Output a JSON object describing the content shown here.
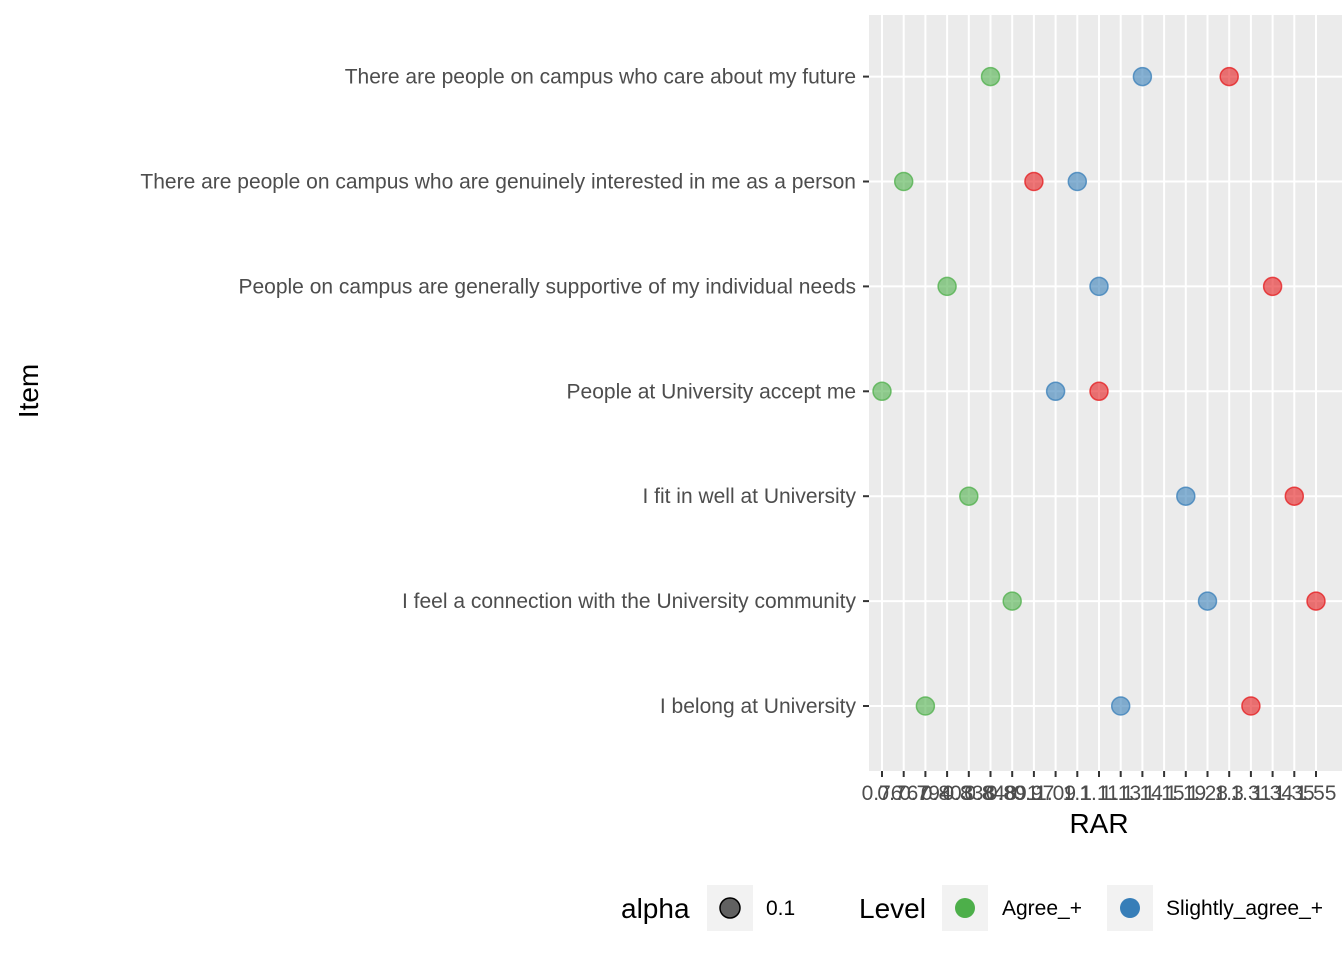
{
  "chart_data": {
    "type": "scatter",
    "title": "",
    "xlabel": "RAR",
    "ylabel": "Item",
    "grid": true,
    "legend_position": "bottom",
    "categories": [
      "I belong at University",
      "I feel a connection with the University community",
      "I fit in well at University",
      "People at University accept me",
      "People on campus are generally supportive of my individual needs",
      "There are people on campus who are genuinely interested in me as a person",
      "There are people on campus who care about my future"
    ],
    "x_ticks": [
      "0.76",
      "0.767",
      "0.794",
      "0.803",
      "0.838",
      "0.848",
      "0.891",
      "0.97",
      "1.09",
      "1.1",
      "1.11",
      "1.13",
      "1.14",
      "1.15",
      "1.19",
      "1.28",
      "1.3",
      "1.31",
      "1.34",
      "1.35",
      "1.55"
    ],
    "series": [
      {
        "name": "Agree_+",
        "color": "#4daf4a",
        "points": [
          {
            "item": "I belong at University",
            "x": "0.794"
          },
          {
            "item": "I feel a connection with the University community",
            "x": "0.891"
          },
          {
            "item": "I fit in well at University",
            "x": "0.838"
          },
          {
            "item": "People at University accept me",
            "x": "0.76"
          },
          {
            "item": "People on campus are generally supportive of my individual needs",
            "x": "0.803"
          },
          {
            "item": "There are people on campus who are genuinely interested in me as a person",
            "x": "0.767"
          },
          {
            "item": "There are people on campus who care about my future",
            "x": "0.848"
          }
        ]
      },
      {
        "name": "Slightly_agree_+",
        "color": "#377eb8",
        "points": [
          {
            "item": "I belong at University",
            "x": "1.13"
          },
          {
            "item": "I feel a connection with the University community",
            "x": "1.28"
          },
          {
            "item": "I fit in well at University",
            "x": "1.19"
          },
          {
            "item": "People at University accept me",
            "x": "1.09"
          },
          {
            "item": "People on campus are generally supportive of my individual needs",
            "x": "1.11"
          },
          {
            "item": "There are people on campus who are genuinely interested in me as a person",
            "x": "1.1"
          },
          {
            "item": "There are people on campus who care about my future",
            "x": "1.14"
          }
        ]
      },
      {
        "name": "",
        "color": "#e41a1c",
        "points": [
          {
            "item": "I belong at University",
            "x": "1.31"
          },
          {
            "item": "I feel a connection with the University community",
            "x": "1.55"
          },
          {
            "item": "I fit in well at University",
            "x": "1.35"
          },
          {
            "item": "People at University accept me",
            "x": "1.11"
          },
          {
            "item": "People on campus are generally supportive of my individual needs",
            "x": "1.34"
          },
          {
            "item": "There are people on campus who are genuinely interested in me as a person",
            "x": "0.97"
          },
          {
            "item": "There are people on campus who care about my future",
            "x": "1.3"
          }
        ]
      }
    ],
    "legend": {
      "alpha_title": "alpha",
      "alpha_value": "0.1",
      "level_title": "Level",
      "level_entries": [
        {
          "label": "Agree_+",
          "color": "#4daf4a"
        },
        {
          "label": "Slightly_agree_+",
          "color": "#377eb8"
        }
      ]
    }
  }
}
